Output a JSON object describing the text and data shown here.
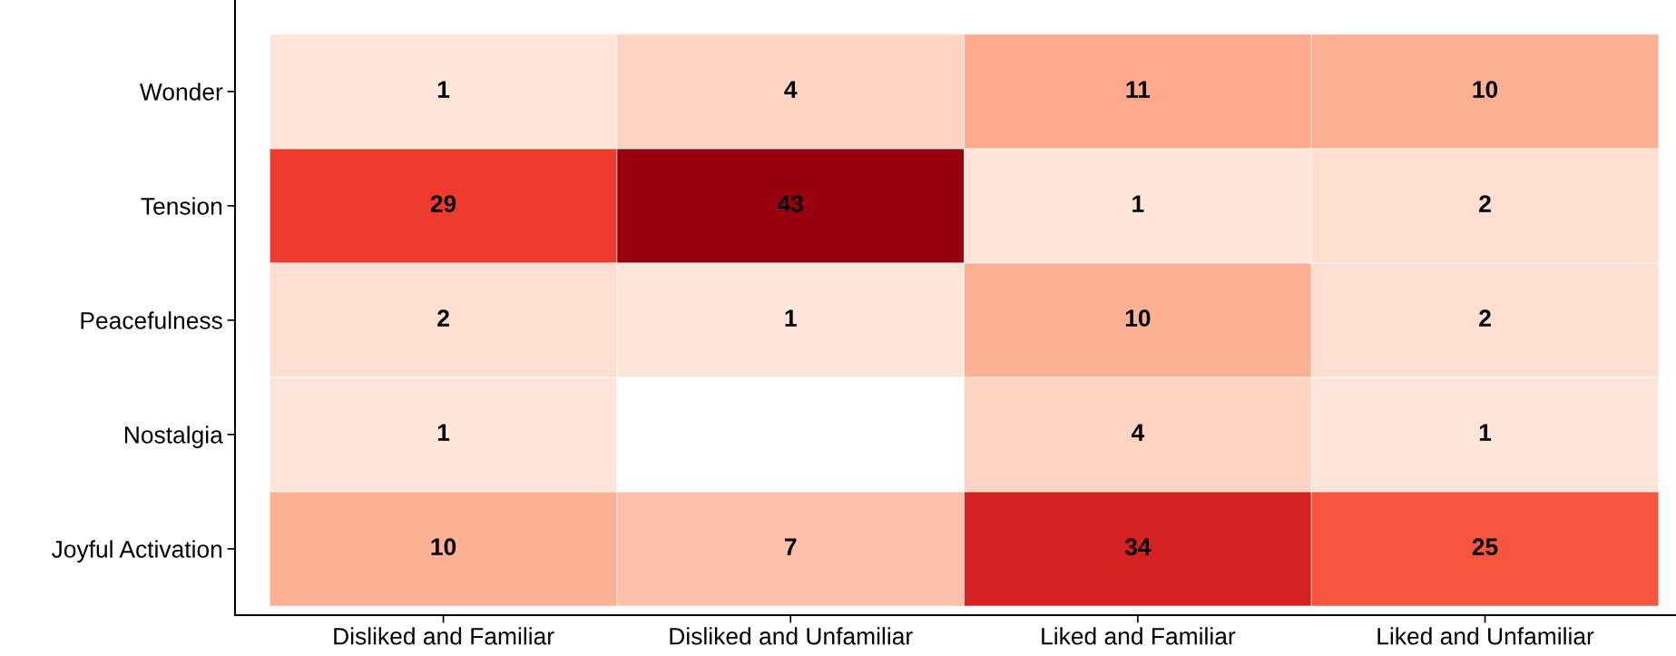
{
  "chart_data": {
    "type": "heatmap",
    "categories": [
      "Disliked and Familiar",
      "Disliked and Unfamiliar",
      "Liked and Familiar",
      "Liked and Unfamiliar"
    ],
    "y_categories": [
      "Wonder",
      "Tension",
      "Peacefulness",
      "Nostalgia",
      "Joyful Activation"
    ],
    "cells": [
      [
        1,
        4,
        11,
        10
      ],
      [
        29,
        43,
        1,
        2
      ],
      [
        2,
        1,
        10,
        2
      ],
      [
        1,
        null,
        4,
        1
      ],
      [
        10,
        7,
        34,
        25
      ]
    ],
    "data_labels": true
  }
}
